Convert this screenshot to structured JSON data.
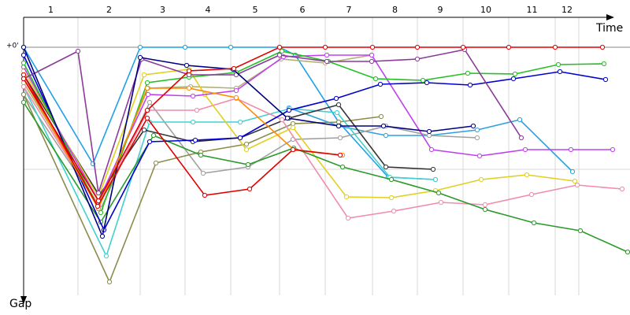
{
  "chart_data": {
    "type": "line",
    "x_label": "Time",
    "y_label": "Gap",
    "xlim": [
      0,
      770
    ],
    "ylim": [
      -38,
      315
    ],
    "xticks": [
      69,
      148,
      205,
      263,
      325,
      383,
      443,
      500,
      558,
      616,
      675,
      705
    ],
    "lap_labels": [
      "1",
      "2",
      "3",
      "4",
      "5",
      "6",
      "7",
      "8",
      "9",
      "10",
      "11",
      "12"
    ],
    "yticks": [
      {
        "value": 0,
        "label": "+0'"
      },
      {
        "value": 155,
        "label": null
      }
    ],
    "grid": true,
    "series": [
      {
        "color": "#1fa0e6",
        "x": [
          0,
          88,
          148,
          205,
          263,
          325,
          345,
          400,
          463,
          523
        ],
        "values": [
          0,
          148,
          0,
          0,
          0,
          0,
          10,
          95,
          165,
          168
        ]
      },
      {
        "color": "#30a0e0",
        "x": [
          337,
          400,
          460,
          515,
          576,
          630,
          697
        ],
        "values": [
          77,
          100,
          112,
          112,
          105,
          92,
          158
        ]
      },
      {
        "color": "#a0a0a0",
        "x": [
          0,
          98,
          160,
          228,
          285,
          342,
          402,
          460,
          515,
          576
        ],
        "values": [
          60,
          205,
          70,
          160,
          152,
          117,
          115,
          100,
          112,
          115
        ]
      },
      {
        "color": "#8b8b4b",
        "x": [
          0,
          109,
          168,
          225,
          283,
          342,
          400,
          454
        ],
        "values": [
          60,
          298,
          147,
          133,
          123,
          97,
          95,
          88
        ]
      },
      {
        "color": "#b0b070",
        "x": [
          0,
          95,
          158,
          212,
          270,
          327,
          383,
          442
        ],
        "values": [
          45,
          200,
          52,
          50,
          52,
          15,
          20,
          10
        ]
      },
      {
        "color": "#40d0d0",
        "x": [
          0,
          105,
          160,
          215,
          275,
          338,
          398,
          465,
          523
        ],
        "values": [
          50,
          265,
          95,
          95,
          95,
          78,
          83,
          165,
          168
        ]
      },
      {
        "color": "#333333",
        "x": [
          0,
          96,
          153,
          215,
          275,
          337,
          400,
          460,
          520
        ],
        "values": [
          35,
          188,
          105,
          120,
          115,
          90,
          73,
          152,
          155
        ]
      },
      {
        "color": "#f08cac",
        "x": [
          0,
          95,
          158,
          220,
          270,
          328,
          412,
          470,
          530,
          586,
          645,
          703,
          760
        ],
        "values": [
          50,
          202,
          80,
          80,
          65,
          92,
          217,
          208,
          197,
          200,
          187,
          175,
          180
        ]
      },
      {
        "color": "#e0d020",
        "x": [
          0,
          95,
          153,
          210,
          230,
          283,
          342,
          410,
          467,
          523,
          581,
          639,
          700
        ],
        "values": [
          30,
          190,
          35,
          28,
          60,
          130,
          102,
          190,
          191,
          182,
          168,
          162,
          170
        ]
      },
      {
        "color": "#2a9a2a",
        "x": [
          0,
          98,
          165,
          225,
          285,
          343,
          405,
          467,
          527,
          586,
          648,
          707,
          767
        ],
        "values": [
          70,
          222,
          112,
          137,
          149,
          128,
          152,
          168,
          185,
          206,
          223,
          233,
          260
        ]
      },
      {
        "color": "#c040f0",
        "x": [
          0,
          95,
          158,
          215,
          270,
          330,
          385,
          442,
          518,
          579,
          637,
          695,
          748
        ],
        "values": [
          25,
          195,
          60,
          62,
          55,
          12,
          10,
          10,
          130,
          138,
          130,
          130,
          130
        ]
      },
      {
        "color": "#0000d0",
        "x": [
          0,
          102,
          160,
          218,
          275,
          337,
          397,
          453,
          512,
          567,
          622,
          681,
          739
        ],
        "values": [
          10,
          232,
          120,
          118,
          115,
          80,
          65,
          47,
          45,
          48,
          40,
          31,
          41
        ]
      },
      {
        "color": "#22c022",
        "x": [
          0,
          98,
          157,
          210,
          270,
          328,
          387,
          447,
          507,
          564,
          624,
          679,
          737
        ],
        "values": [
          20,
          210,
          45,
          38,
          32,
          5,
          18,
          40,
          42,
          33,
          34,
          22,
          21
        ]
      },
      {
        "color": "#8b3a9a",
        "x": [
          0,
          69,
          95,
          150,
          210,
          270,
          325,
          385,
          442,
          500,
          560,
          632
        ],
        "values": [
          40,
          5,
          185,
          15,
          35,
          35,
          10,
          18,
          18,
          15,
          3,
          115
        ]
      },
      {
        "color": "#000080",
        "x": [
          0,
          100,
          148,
          207,
          266,
          335,
          400,
          457,
          515,
          571
        ],
        "values": [
          0,
          240,
          13,
          23,
          28,
          90,
          100,
          100,
          107,
          100
        ]
      },
      {
        "color": "#ff8c00",
        "x": [
          0,
          95,
          157,
          210,
          270,
          343,
          405
        ],
        "values": [
          40,
          205,
          52,
          52,
          64,
          130,
          137
        ]
      },
      {
        "color": "#e00000",
        "x": [
          0,
          94,
          157,
          230,
          287,
          342,
          402
        ],
        "values": [
          35,
          202,
          90,
          188,
          180,
          130,
          137
        ]
      },
      {
        "color": "#e00000",
        "x": [
          0,
          95,
          157,
          210,
          267,
          325,
          383,
          443,
          500,
          558,
          616,
          675,
          735
        ],
        "values": [
          40,
          195,
          80,
          30,
          27,
          0,
          0,
          0,
          0,
          0,
          0,
          0,
          0
        ]
      }
    ]
  }
}
